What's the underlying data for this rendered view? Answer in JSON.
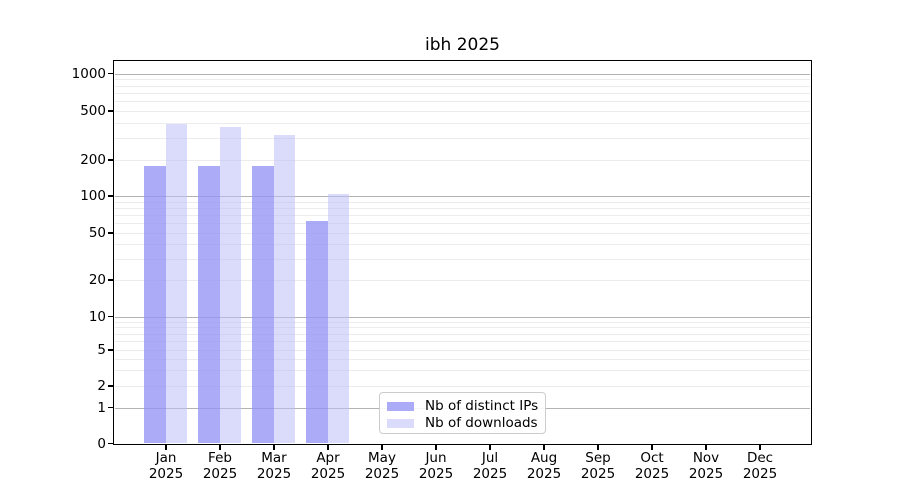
{
  "figure": {
    "background": "#ffffff",
    "spine_color": "#000000"
  },
  "chart_data": {
    "type": "bar",
    "title": "ibh 2025",
    "x_categories": [
      "Jan",
      "Feb",
      "Mar",
      "Apr",
      "May",
      "Jun",
      "Jul",
      "Aug",
      "Sep",
      "Oct",
      "Nov",
      "Dec"
    ],
    "x_year_label": "2025",
    "series": [
      {
        "name": "Nb of distinct IPs",
        "color": "#a6a6f2",
        "fill": "rgba(148,148,245,0.78)",
        "values": [
          180,
          180,
          180,
          63,
          0,
          0,
          0,
          0,
          0,
          0,
          0,
          0
        ]
      },
      {
        "name": "Nb of downloads",
        "color": "#dbdbfa",
        "fill": "rgba(190,190,247,0.55)",
        "values": [
          390,
          370,
          320,
          105,
          0,
          0,
          0,
          0,
          0,
          0,
          0,
          0
        ]
      }
    ],
    "yscale": "log",
    "yticks": [
      0,
      1,
      2,
      5,
      10,
      20,
      50,
      100,
      200,
      500,
      1000
    ],
    "ylim": [
      0,
      1300
    ],
    "grid": {
      "show": true,
      "major_color": "#b3b3b3",
      "minor_color": "#ececec",
      "minor_subs": [
        3,
        4,
        6,
        7,
        8,
        9
      ]
    },
    "legend": {
      "position": "lower center",
      "border_color": "#cccccc",
      "background": "#ffffff",
      "entries": [
        "Nb of distinct IPs",
        "Nb of downloads"
      ]
    }
  }
}
